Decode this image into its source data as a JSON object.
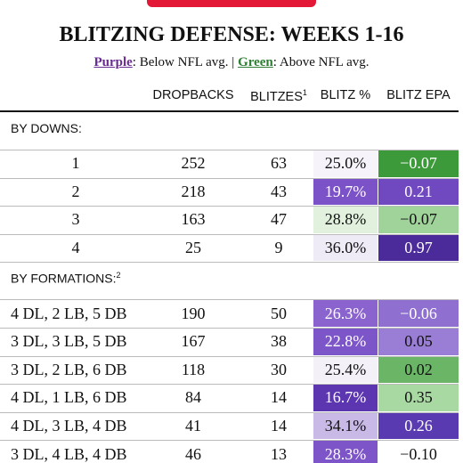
{
  "header": {
    "title": "BLITZING DEFENSE: WEEKS 1-16",
    "legend": {
      "purple": "Purple",
      "purple_text": ": Below NFL avg. | ",
      "green": "Green",
      "green_text": ": Above NFL avg.",
      "purple_color": "#6a2c91",
      "green_color": "#2e7d32"
    }
  },
  "table": {
    "columns": [
      {
        "text": "DROPBACKS"
      },
      {
        "text": "BLITZES",
        "sup": "1"
      },
      {
        "text": "BLITZ %"
      },
      {
        "text": "BLITZ EPA"
      }
    ],
    "sections": [
      {
        "title": "BY DOWNS:",
        "align": "center",
        "rows": [
          {
            "cells": [
              "1",
              "252",
              "63",
              "25.0%",
              "−0.07"
            ],
            "pct_bg": "#f6f3fa",
            "pct_fg": "#111",
            "epa_bg": "#3d9a3b",
            "epa_fg": "#fff"
          },
          {
            "cells": [
              "2",
              "218",
              "43",
              "19.7%",
              "0.21"
            ],
            "pct_bg": "#7b52c7",
            "pct_fg": "#fff",
            "epa_bg": "#7048c0",
            "epa_fg": "#fff"
          },
          {
            "cells": [
              "3",
              "163",
              "47",
              "28.8%",
              "−0.07"
            ],
            "pct_bg": "#e1f1dd",
            "pct_fg": "#111",
            "epa_bg": "#9fd39a",
            "epa_fg": "#111"
          },
          {
            "cells": [
              "4",
              "25",
              "9",
              "36.0%",
              "0.97"
            ],
            "pct_bg": "#eeeaf6",
            "pct_fg": "#111",
            "epa_bg": "#4b2a9a",
            "epa_fg": "#fff"
          }
        ]
      },
      {
        "title": "BY FORMATIONS:",
        "sup": "2",
        "align": "left",
        "rows": [
          {
            "cells": [
              "4 DL, 2 LB, 5 DB",
              "190",
              "50",
              "26.3%",
              "−0.06"
            ],
            "pct_bg": "#8a63cf",
            "pct_fg": "#fff",
            "epa_bg": "#8f6fd0",
            "epa_fg": "#fff"
          },
          {
            "cells": [
              "3 DL, 3 LB, 5 DB",
              "167",
              "38",
              "22.8%",
              "0.05"
            ],
            "pct_bg": "#7c55c8",
            "pct_fg": "#fff",
            "epa_bg": "#9a7ed6",
            "epa_fg": "#111"
          },
          {
            "cells": [
              "3 DL, 2 LB, 6 DB",
              "118",
              "30",
              "25.4%",
              "0.02"
            ],
            "pct_bg": "#f3f0f8",
            "pct_fg": "#111",
            "epa_bg": "#6ab566",
            "epa_fg": "#111"
          },
          {
            "cells": [
              "4 DL, 1 LB, 6 DB",
              "84",
              "14",
              "16.7%",
              "0.35"
            ],
            "pct_bg": "#5c36b0",
            "pct_fg": "#fff",
            "epa_bg": "#a8d9a3",
            "epa_fg": "#111"
          },
          {
            "cells": [
              "4 DL, 3 LB, 4 DB",
              "41",
              "14",
              "34.1%",
              "0.26"
            ],
            "pct_bg": "#c9b9e6",
            "pct_fg": "#111",
            "epa_bg": "#5a3ab0",
            "epa_fg": "#fff"
          },
          {
            "cells": [
              "3 DL, 4 LB, 4 DB",
              "46",
              "13",
              "28.3%",
              "−0.10"
            ],
            "pct_bg": "#7d55c9",
            "pct_fg": "#fff",
            "epa_bg": "#ffffff",
            "epa_fg": "#111"
          }
        ]
      }
    ]
  }
}
